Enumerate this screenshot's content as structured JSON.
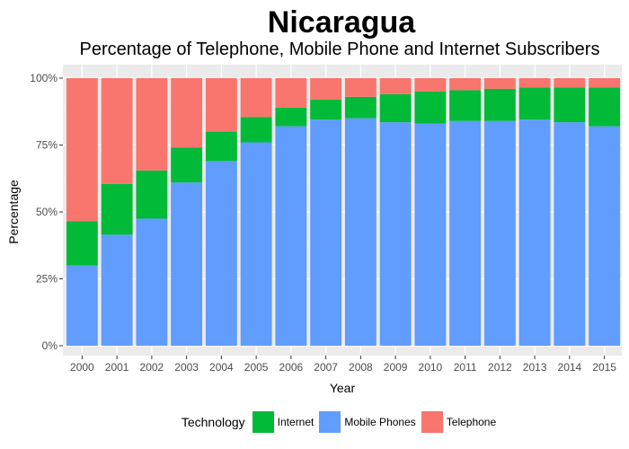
{
  "chart_data": {
    "type": "bar",
    "stacked": true,
    "title": "Nicaragua",
    "subtitle": "Percentage of Telephone, Mobile Phone and Internet Subscribers",
    "xlabel": "Year",
    "ylabel": "Percentage",
    "ylim": [
      0,
      1
    ],
    "yticks": [
      "0%",
      "25%",
      "50%",
      "75%",
      "100%"
    ],
    "categories": [
      "2000",
      "2001",
      "2002",
      "2003",
      "2004",
      "2005",
      "2006",
      "2007",
      "2008",
      "2009",
      "2010",
      "2011",
      "2012",
      "2013",
      "2014",
      "2015"
    ],
    "series": [
      {
        "name": "Mobile Phones",
        "color": "#619CFF",
        "values": [
          0.3,
          0.415,
          0.475,
          0.61,
          0.69,
          0.76,
          0.82,
          0.845,
          0.85,
          0.835,
          0.83,
          0.84,
          0.84,
          0.845,
          0.835,
          0.82
        ]
      },
      {
        "name": "Internet",
        "color": "#00BA38",
        "values": [
          0.165,
          0.19,
          0.18,
          0.13,
          0.11,
          0.095,
          0.07,
          0.075,
          0.08,
          0.105,
          0.12,
          0.115,
          0.12,
          0.12,
          0.13,
          0.145
        ]
      },
      {
        "name": "Telephone",
        "color": "#F8766D",
        "values": [
          0.535,
          0.395,
          0.345,
          0.26,
          0.2,
          0.145,
          0.11,
          0.08,
          0.07,
          0.06,
          0.05,
          0.045,
          0.04,
          0.035,
          0.035,
          0.035
        ]
      }
    ],
    "grid": true,
    "legend": {
      "title": "Technology",
      "position": "bottom",
      "items": [
        {
          "name": "Internet",
          "color": "#00BA38"
        },
        {
          "name": "Mobile Phones",
          "color": "#619CFF"
        },
        {
          "name": "Telephone",
          "color": "#F8766D"
        }
      ]
    }
  }
}
